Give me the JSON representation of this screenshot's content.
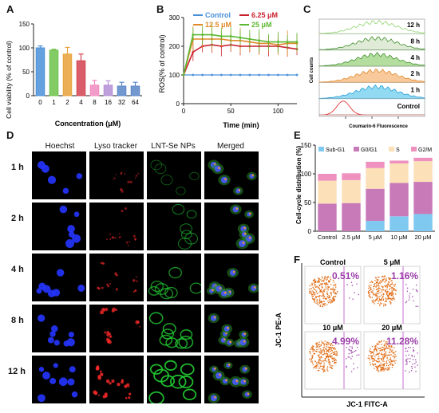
{
  "panels": {
    "a": "A",
    "b": "B",
    "c": "C",
    "d": "D",
    "e": "E",
    "f": "F"
  },
  "colors": {
    "control": "#4a90d9",
    "c625": "#c8202d",
    "c125": "#e08a2a",
    "c25": "#5cb832",
    "bar_subg1": "#7fc8f0",
    "bar_g0g1": "#c879b8",
    "bar_s": "#fbe0b8",
    "bar_g2m": "#ee91bf",
    "flow_orange": "#e06a12",
    "flow_purple": "#9b3fa8",
    "gate": "#c86fd0"
  },
  "chart_a": {
    "type": "bar",
    "ylabel": "Cell viability (% of control)",
    "xlabel": "Concentration (μM)",
    "categories": [
      "0",
      "1",
      "2",
      "4",
      "8",
      "16",
      "32",
      "64"
    ],
    "values": [
      100,
      95,
      87,
      73,
      22,
      22,
      20,
      20
    ],
    "errors": [
      4,
      2,
      14,
      14,
      10,
      9,
      8,
      8
    ],
    "ylim": [
      0,
      150
    ],
    "yticks": [
      "0",
      "50",
      "100",
      "150"
    ],
    "colors": [
      "#4a90d9",
      "#6dc24a",
      "#e8a23a",
      "#d2424f",
      "#f08cc0",
      "#b48fd6",
      "#5a86c8",
      "#5a86c8"
    ]
  },
  "chart_b": {
    "type": "line",
    "ylabel": "ROS(% of control)",
    "xlabel": "Time (min)",
    "xticks": [
      "0",
      "50",
      "100"
    ],
    "yticks": [
      "0",
      "100",
      "200",
      "300"
    ],
    "xlim": [
      0,
      120
    ],
    "ylim": [
      0,
      300
    ],
    "legend": [
      "Control",
      "6.25 μM",
      "12.5 μM",
      "25 μM"
    ],
    "series": [
      {
        "name": "Control",
        "x": [
          0,
          10,
          20,
          30,
          40,
          50,
          60,
          70,
          80,
          90,
          100,
          110,
          120
        ],
        "values": [
          100,
          100,
          100,
          100,
          100,
          100,
          100,
          100,
          100,
          100,
          100,
          100,
          100
        ]
      },
      {
        "name": "6.25 μM",
        "x": [
          0,
          10,
          20,
          30,
          40,
          50,
          60,
          70,
          80,
          90,
          100,
          110,
          120
        ],
        "values": [
          100,
          180,
          200,
          205,
          200,
          205,
          200,
          200,
          200,
          200,
          200,
          195,
          190
        ]
      },
      {
        "name": "12.5 μM",
        "x": [
          0,
          10,
          20,
          30,
          40,
          50,
          60,
          70,
          80,
          90,
          100,
          110,
          120
        ],
        "values": [
          100,
          225,
          225,
          225,
          225,
          220,
          220,
          215,
          210,
          210,
          205,
          210,
          210
        ]
      },
      {
        "name": "25 μM",
        "x": [
          0,
          10,
          20,
          30,
          40,
          50,
          60,
          70,
          80,
          90,
          100,
          110,
          120
        ],
        "values": [
          100,
          240,
          240,
          240,
          235,
          235,
          230,
          225,
          220,
          215,
          215,
          215,
          215
        ]
      }
    ]
  },
  "chart_c": {
    "type": "histogram",
    "ylabel": "Cell counts",
    "xlabel": "Coumarin-6 Fluorescence",
    "labels": [
      "12 h",
      "8 h",
      "4 h",
      "2 h",
      "1 h",
      "Control"
    ],
    "fills": [
      "#ffffff",
      "#d9e8cf",
      "#a7d88f",
      "#f6c089",
      "#7fd3f0",
      "#ffffff"
    ],
    "strokes": [
      "#8fd46e",
      "#3f8f2a",
      "#3f8f2a",
      "#e08a2a",
      "#2a9fd8",
      "#e02020"
    ]
  },
  "chart_e": {
    "type": "stacked-bar",
    "ylabel": "Cell-cycle distribution (%)",
    "categories": [
      "Control",
      "2.5 μM",
      "5 μM",
      "10 μM",
      "20 μM"
    ],
    "legend": [
      "Sub-G1",
      "G0/G1",
      "S",
      "G2/M"
    ],
    "series": [
      {
        "name": "Sub-G1",
        "values": [
          0,
          0,
          18,
          26,
          30
        ]
      },
      {
        "name": "G0/G1",
        "values": [
          48,
          49,
          56,
          58,
          56
        ]
      },
      {
        "name": "S",
        "values": [
          40,
          40,
          36,
          34,
          36
        ]
      },
      {
        "name": "G2/M",
        "values": [
          12,
          12,
          11,
          5,
          6
        ]
      }
    ],
    "ylim": [
      0,
      150
    ],
    "yticks": [
      "0",
      "50",
      "100",
      "150"
    ]
  },
  "micro": {
    "headers": [
      "Hoechst",
      "Lyso tracker",
      "LNT-Se NPs",
      "Merged"
    ],
    "rows": [
      "1 h",
      "2 h",
      "4 h",
      "8 h",
      "12 h"
    ]
  },
  "flow": {
    "ylabel": "JC-1 PE-A",
    "xlabel": "JC-1 FITC-A",
    "plots": [
      {
        "title": "Control",
        "pct": "0.51%"
      },
      {
        "title": "5 μM",
        "pct": "1.16%"
      },
      {
        "title": "10 μM",
        "pct": "4.99%"
      },
      {
        "title": "20 μM",
        "pct": "11.28%"
      }
    ]
  }
}
